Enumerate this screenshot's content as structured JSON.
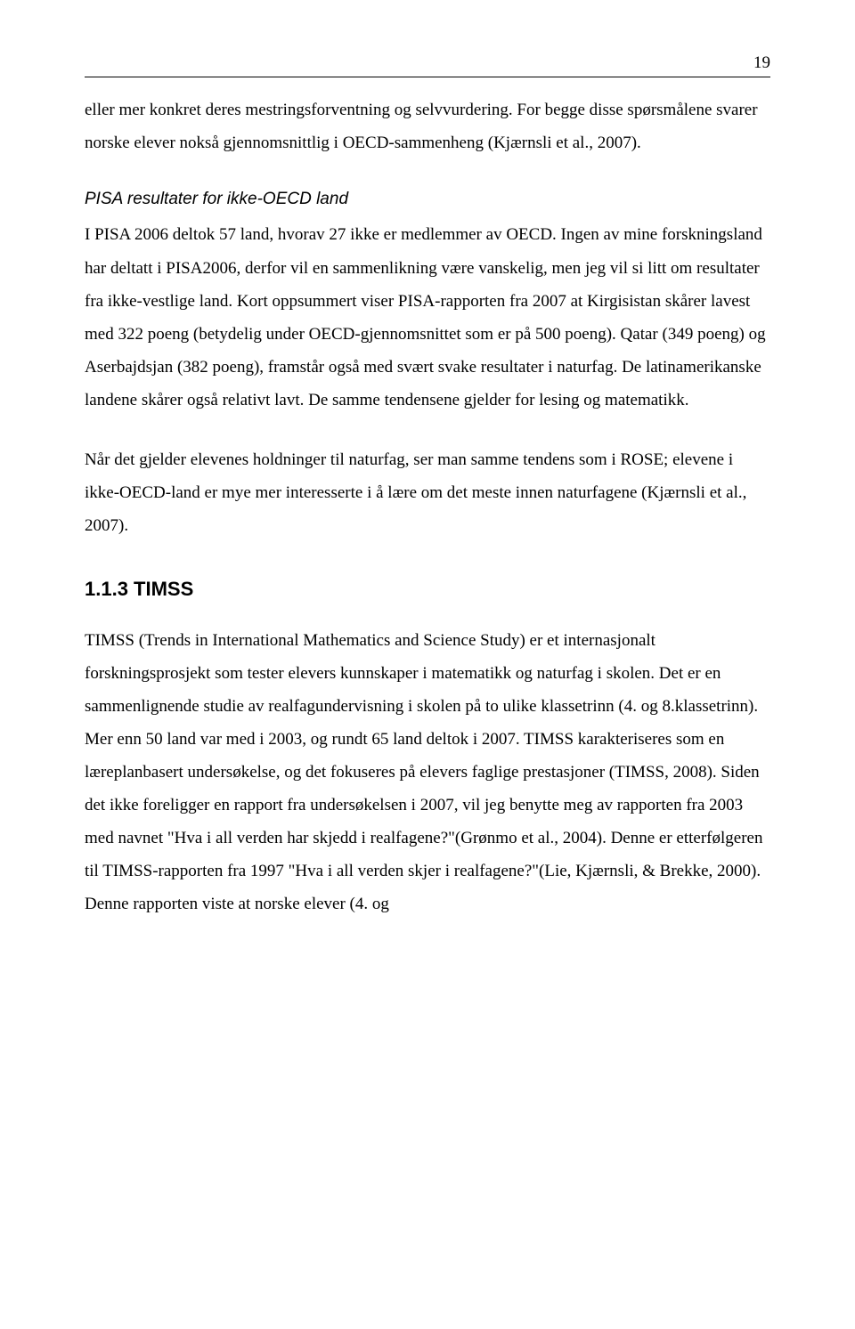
{
  "page_number": "19",
  "para1": "eller mer konkret deres mestringsforventning og selvvurdering. For begge disse spørsmålene svarer norske elever nokså gjennomsnittlig i OECD-sammenheng (Kjærnsli et al., 2007).",
  "subheading1": "PISA resultater for ikke-OECD land",
  "para2": "I PISA 2006 deltok 57 land, hvorav 27 ikke er medlemmer av OECD. Ingen av mine forskningsland har deltatt i PISA2006, derfor vil en sammenlikning være vanskelig, men jeg vil si litt om resultater fra ikke-vestlige land. Kort oppsummert viser PISA-rapporten fra 2007 at Kirgisistan skårer lavest med 322 poeng (betydelig under OECD-gjennomsnittet som er på 500 poeng). Qatar (349 poeng) og Aserbajdsjan (382 poeng), framstår også med svært svake resultater i naturfag. De latinamerikanske landene skårer også relativt lavt. De samme tendensene gjelder for lesing og matematikk.",
  "para3": "Når det gjelder elevenes holdninger til naturfag, ser man samme tendens som i ROSE; elevene i ikke-OECD-land er mye mer interesserte i å lære om det meste innen naturfagene (Kjærnsli et al., 2007).",
  "section_heading": "1.1.3  TIMSS",
  "para4": "TIMSS (Trends in International Mathematics and Science Study) er et internasjonalt forskningsprosjekt som tester elevers kunnskaper i matematikk og naturfag i skolen. Det er en sammenlignende studie av realfagundervisning i skolen på to ulike klassetrinn (4. og 8.klassetrinn). Mer enn 50 land var med i 2003, og rundt 65 land deltok i 2007. TIMSS karakteriseres som en læreplanbasert undersøkelse, og det fokuseres på elevers faglige prestasjoner (TIMSS, 2008). Siden det ikke foreligger en rapport fra undersøkelsen i 2007, vil jeg benytte meg av rapporten fra 2003 med navnet \"Hva i all verden har skjedd i realfagene?\"(Grønmo et al., 2004). Denne er etterfølgeren til TIMSS-rapporten fra 1997 \"Hva i all verden skjer i realfagene?\"(Lie, Kjærnsli, & Brekke, 2000). Denne rapporten viste at norske elever (4. og"
}
